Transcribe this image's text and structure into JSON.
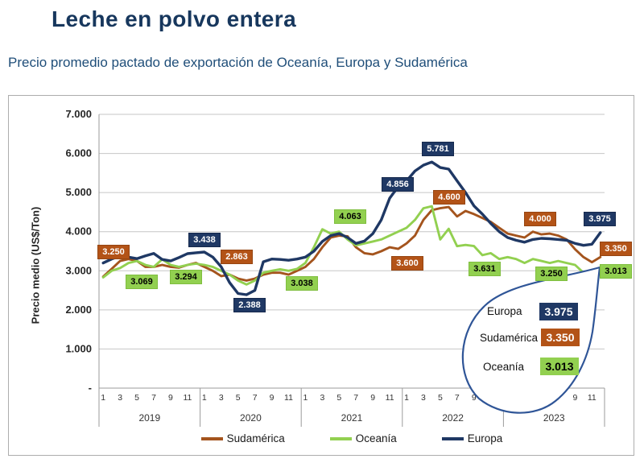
{
  "page": {
    "title": "Leche en polvo entera",
    "subtitle": "Precio promedio pactado de exportación de Oceanía, Europa y Sudamérica"
  },
  "chart_data": {
    "type": "line",
    "ylabel": "Precio medio (US$/Ton)",
    "ylim": [
      0,
      7000
    ],
    "ytick_step": 1000,
    "ytick_labels": [
      "-",
      "1.000",
      "2.000",
      "3.000",
      "4.000",
      "5.000",
      "6.000",
      "7.000"
    ],
    "years": [
      "2019",
      "2020",
      "2021",
      "2022",
      "2023"
    ],
    "month_ticks": [
      "1",
      "3",
      "5",
      "7",
      "9",
      "11"
    ],
    "grid": true,
    "legend_position": "bottom",
    "colors": {
      "grid": "#C6C6C6",
      "axis": "#9B9B9B",
      "balloon_border": "#2F5597"
    },
    "series": [
      {
        "key": "sudamerica",
        "name": "Sudamérica",
        "color": "#A4541D",
        "values": [
          2850,
          3050,
          3250,
          3300,
          3250,
          3100,
          3100,
          3150,
          3100,
          3080,
          3150,
          3200,
          3100,
          3000,
          2863,
          2900,
          2800,
          2750,
          2800,
          2900,
          2950,
          2950,
          2900,
          3000,
          3100,
          3300,
          3600,
          3850,
          3900,
          3880,
          3600,
          3450,
          3420,
          3500,
          3600,
          3560,
          3700,
          3900,
          4300,
          4550,
          4600,
          4630,
          4390,
          4530,
          4450,
          4350,
          4250,
          4100,
          3950,
          3900,
          3850,
          4000,
          3930,
          3950,
          3900,
          3800,
          3550,
          3350,
          3220,
          3350
        ]
      },
      {
        "key": "oceania",
        "name": "Oceanía",
        "color": "#92D050",
        "values": [
          2830,
          3000,
          3069,
          3200,
          3250,
          3150,
          3100,
          3294,
          3150,
          3100,
          3150,
          3180,
          3150,
          3100,
          3000,
          2900,
          2750,
          2650,
          2750,
          2950,
          3000,
          3038,
          3000,
          3050,
          3200,
          3600,
          4063,
          3950,
          4000,
          3800,
          3650,
          3700,
          3750,
          3800,
          3900,
          4000,
          4100,
          4300,
          4600,
          4650,
          3800,
          4075,
          3630,
          3660,
          3631,
          3400,
          3450,
          3300,
          3350,
          3300,
          3200,
          3300,
          3250,
          3200,
          3250,
          3200,
          3150,
          2950,
          3000,
          3013
        ]
      },
      {
        "key": "europa",
        "name": "Europa",
        "color": "#1F3864",
        "values": [
          3200,
          3300,
          3380,
          3350,
          3310,
          3380,
          3445,
          3290,
          3250,
          3340,
          3438,
          3460,
          3480,
          3350,
          3100,
          2700,
          2420,
          2388,
          2500,
          3230,
          3300,
          3290,
          3270,
          3300,
          3350,
          3500,
          3750,
          3900,
          3950,
          3850,
          3700,
          3760,
          3950,
          4300,
          4856,
          5150,
          5300,
          5550,
          5700,
          5781,
          5640,
          5600,
          5300,
          5000,
          4660,
          4450,
          4210,
          4000,
          3850,
          3780,
          3730,
          3800,
          3830,
          3820,
          3800,
          3780,
          3700,
          3650,
          3680,
          3975
        ]
      }
    ],
    "point_labels": [
      {
        "series": "sudamerica",
        "text": "3.250",
        "x": 130,
        "y": 194
      },
      {
        "series": "oceania",
        "text": "3.069",
        "x": 165,
        "y": 231
      },
      {
        "series": "oceania",
        "text": "3.294",
        "x": 220,
        "y": 225
      },
      {
        "series": "europa",
        "text": "3.438",
        "x": 243,
        "y": 179
      },
      {
        "series": "sudamerica",
        "text": "2.863",
        "x": 283,
        "y": 200
      },
      {
        "series": "europa",
        "text": "2.388",
        "x": 299,
        "y": 260
      },
      {
        "series": "oceania",
        "text": "3.038",
        "x": 364,
        "y": 233
      },
      {
        "series": "oceania",
        "text": "4.063",
        "x": 424,
        "y": 150
      },
      {
        "series": "europa",
        "text": "4.856",
        "x": 483,
        "y": 110
      },
      {
        "series": "sudamerica",
        "text": "3.600",
        "x": 495,
        "y": 208
      },
      {
        "series": "europa",
        "text": "5.781",
        "x": 533,
        "y": 66
      },
      {
        "series": "sudamerica",
        "text": "4.600",
        "x": 547,
        "y": 126
      },
      {
        "series": "oceania",
        "text": "3.631",
        "x": 591,
        "y": 215
      },
      {
        "series": "sudamerica",
        "text": "4.000",
        "x": 660,
        "y": 153
      },
      {
        "series": "oceania",
        "text": "3.250",
        "x": 674,
        "y": 221
      },
      {
        "series": "europa",
        "text": "3.975",
        "x": 734,
        "y": 153
      },
      {
        "series": "sudamerica",
        "text": "3.350",
        "x": 754,
        "y": 190
      },
      {
        "series": "oceania",
        "text": "3.013",
        "x": 754,
        "y": 218
      }
    ],
    "callout": {
      "rows": [
        {
          "series": "europa",
          "label": "Europa",
          "value": "3.975"
        },
        {
          "series": "sudamerica",
          "label": "Sudamérica",
          "value": "3.350"
        },
        {
          "series": "oceania",
          "label": "Oceanía",
          "value": "3.013"
        }
      ]
    }
  }
}
